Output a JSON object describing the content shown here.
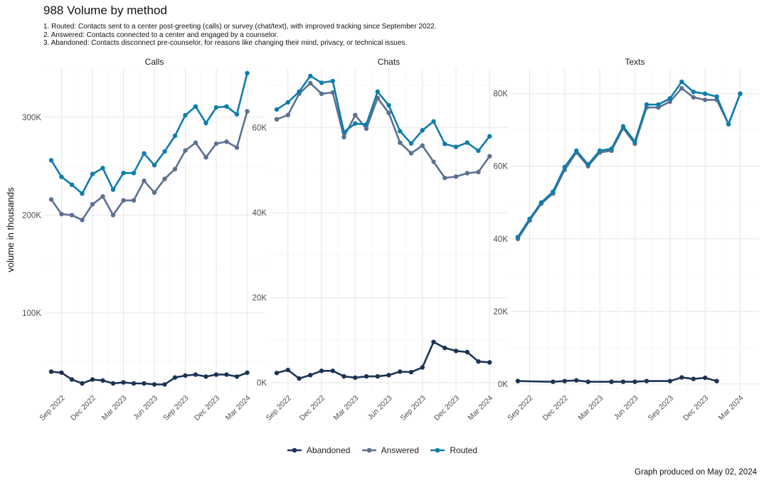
{
  "title": "988 Volume by method",
  "notes": [
    "1. Routed: Contacts sent to a center post-greeting (calls) or survey (chat/text), with improved tracking since September 2022.",
    "2. Answered: Contacts connected to a center and engaged by a counselor.",
    "3. Abandoned: Contacts disconnect pre-counselor, for reasons like changing their mind, privacy, or technical issues."
  ],
  "caption": "Graph produced on May 02, 2024",
  "colors": {
    "Abandoned": "#1c3454",
    "Answered": "#5c7190",
    "Routed": "#0e7dad"
  },
  "chart_data": {
    "type": "line",
    "ylabel": "volume in thousands",
    "x_ticks": [
      "Sep 2022",
      "Dec 2022",
      "Mar 2023",
      "Jun 2023",
      "Sep 2023",
      "Dec 2023",
      "Mar 2024"
    ],
    "legend": [
      "Abandoned",
      "Answered",
      "Routed"
    ],
    "legend_position": "bottom",
    "grid": true,
    "panels": [
      {
        "name": "Calls",
        "x": [
          "2022-08",
          "2022-09",
          "2022-10",
          "2022-11",
          "2022-12",
          "2023-01",
          "2023-02",
          "2023-03",
          "2023-04",
          "2023-05",
          "2023-06",
          "2023-07",
          "2023-08",
          "2023-09",
          "2023-10",
          "2023-11",
          "2023-12",
          "2024-01",
          "2024-02",
          "2024-03",
          "2024-04"
        ],
        "yticks": [
          100000,
          200000,
          300000
        ],
        "ytick_labels": [
          "100K",
          "200K",
          "300K"
        ],
        "ylim": [
          20000,
          350000
        ],
        "series": [
          {
            "name": "Abandoned",
            "values": [
              40000,
              39000,
              32000,
              28000,
              32000,
              31000,
              28000,
              29000,
              28000,
              28000,
              27000,
              27000,
              34000,
              36000,
              37000,
              35000,
              37000,
              37000,
              35000,
              39000,
              null
            ]
          },
          {
            "name": "Answered",
            "values": [
              216000,
              201000,
              200000,
              195000,
              211000,
              219000,
              200000,
              215000,
              215000,
              235000,
              223000,
              237000,
              247000,
              266000,
              274000,
              259000,
              273000,
              275000,
              269000,
              306000,
              null
            ]
          },
          {
            "name": "Routed",
            "values": [
              256000,
              239000,
              231000,
              222000,
              242000,
              248000,
              226000,
              243000,
              243000,
              263000,
              251000,
              265000,
              281000,
              302000,
              311000,
              294000,
              310000,
              311000,
              303000,
              345000,
              null
            ]
          }
        ]
      },
      {
        "name": "Chats",
        "x": [
          "2022-08",
          "2022-09",
          "2022-10",
          "2022-11",
          "2022-12",
          "2023-01",
          "2023-02",
          "2023-03",
          "2023-04",
          "2023-05",
          "2023-06",
          "2023-07",
          "2023-08",
          "2023-09",
          "2023-10",
          "2023-11",
          "2023-12",
          "2024-01",
          "2024-02",
          "2024-03",
          "2024-04"
        ],
        "yticks": [
          0,
          20000,
          40000,
          60000
        ],
        "ytick_labels": [
          "0K",
          "20K",
          "40K",
          "60K"
        ],
        "ylim": [
          -2000,
          74000
        ],
        "series": [
          {
            "name": "Abandoned",
            "values": [
              2300,
              3000,
              1000,
              1800,
              2800,
              2800,
              1500,
              1200,
              1500,
              1500,
              1800,
              2600,
              2500,
              3600,
              9600,
              8200,
              7500,
              7200,
              5000,
              4800,
              null
            ]
          },
          {
            "name": "Answered",
            "values": [
              62000,
              63000,
              68000,
              70500,
              68000,
              68300,
              57800,
              63000,
              59800,
              67000,
              63500,
              56500,
              54000,
              55800,
              52000,
              48200,
              48500,
              49300,
              49600,
              53300,
              null
            ]
          },
          {
            "name": "Routed",
            "values": [
              64300,
              66000,
              68500,
              72200,
              70600,
              71000,
              59000,
              61000,
              60800,
              68500,
              65300,
              59200,
              56300,
              59400,
              61500,
              56200,
              55500,
              56500,
              54600,
              58000,
              null
            ]
          }
        ]
      },
      {
        "name": "Texts",
        "x": [
          "2022-08",
          "2022-09",
          "2022-10",
          "2022-11",
          "2022-12",
          "2023-01",
          "2023-02",
          "2023-03",
          "2023-04",
          "2023-05",
          "2023-06",
          "2023-07",
          "2023-08",
          "2023-09",
          "2023-10",
          "2023-11",
          "2023-12",
          "2024-01",
          "2024-02",
          "2024-03",
          "2024-04"
        ],
        "yticks": [
          0,
          20000,
          40000,
          60000,
          80000
        ],
        "ytick_labels": [
          "0K",
          "20K",
          "40K",
          "60K",
          "80K"
        ],
        "ylim": [
          -2000,
          87000
        ],
        "series": [
          {
            "name": "Abandoned",
            "values": [
              800,
              null,
              null,
              600,
              800,
              1000,
              600,
              null,
              600,
              600,
              600,
              800,
              null,
              800,
              1800,
              1400,
              1700,
              800,
              null,
              null,
              null
            ]
          },
          {
            "name": "Answered",
            "values": [
              40000,
              45000,
              49700,
              52500,
              59000,
              63800,
              60000,
              63800,
              64300,
              70500,
              66200,
              76200,
              76200,
              77800,
              81500,
              79000,
              78300,
              78300,
              71600,
              80000,
              null
            ]
          },
          {
            "name": "Routed",
            "values": [
              40500,
              45500,
              50000,
              53000,
              59800,
              64300,
              60500,
              64300,
              64800,
              71000,
              66800,
              77000,
              77000,
              78700,
              83300,
              80500,
              80000,
              79200,
              71600,
              80000,
              null
            ]
          }
        ]
      }
    ]
  }
}
